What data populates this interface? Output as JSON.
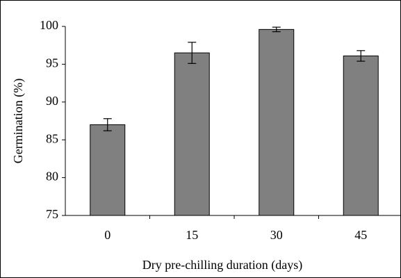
{
  "chart_data": {
    "type": "bar",
    "x_label": "Dry pre-chilling duration (days)",
    "y_label": "Germination (%)",
    "categories": [
      "0",
      "15",
      "30",
      "45"
    ],
    "values": [
      87,
      96.5,
      99.6,
      96.1
    ],
    "errors": [
      0.8,
      1.4,
      0.3,
      0.7
    ],
    "color": "#808080",
    "ylim": [
      75,
      100
    ],
    "yticks": [
      75,
      80,
      85,
      90,
      95,
      100
    ],
    "grid": false
  }
}
